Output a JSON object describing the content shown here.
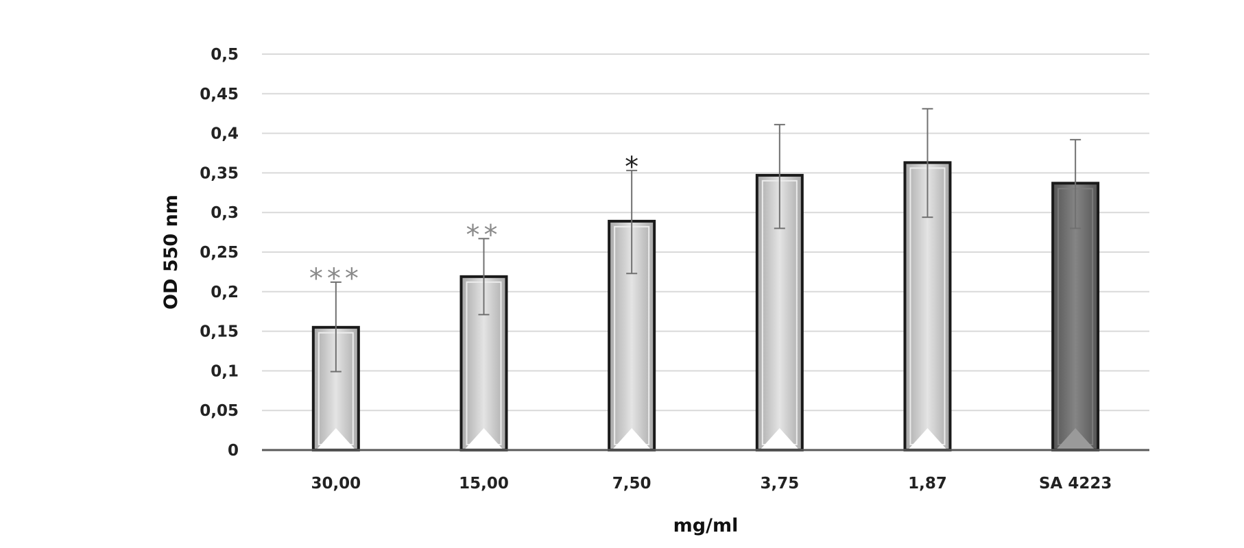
{
  "chart_data": {
    "type": "bar",
    "title": "",
    "xlabel": "mg/ml",
    "ylabel": "OD 550 nm",
    "ylim": [
      0,
      0.5
    ],
    "yticks": [
      "0",
      "0,05",
      "0,1",
      "0,15",
      "0,2",
      "0,25",
      "0,3",
      "0,35",
      "0,4",
      "0,45",
      "0,5"
    ],
    "grid": true,
    "categories": [
      "30,00",
      "15,00",
      "7,50",
      "3,75",
      "1,87",
      "SA 4223"
    ],
    "values": [
      0.155,
      0.219,
      0.289,
      0.347,
      0.363,
      0.337
    ],
    "error_low": [
      0.099,
      0.171,
      0.223,
      0.28,
      0.294,
      0.28
    ],
    "error_high": [
      0.212,
      0.267,
      0.353,
      0.411,
      0.431,
      0.392
    ],
    "annotations": [
      "***",
      "**",
      "*",
      "",
      "",
      ""
    ],
    "annotation_colors": [
      "#8a8a8a",
      "#8a8a8a",
      "#222222",
      "",
      "",
      ""
    ],
    "bar_styles": [
      "light",
      "light",
      "light",
      "light",
      "light",
      "dark"
    ],
    "colors": {
      "light_bar": "#c9c9c9",
      "light_bar_edge": "#a8a8a8",
      "dark_bar": "#6a6a6a",
      "dark_bar_edge": "#545454",
      "bar_outline": "#1a1a1a",
      "gridline": "#d9d9d9",
      "axis": "#5a5a5a",
      "error_bar": "#707070"
    }
  }
}
